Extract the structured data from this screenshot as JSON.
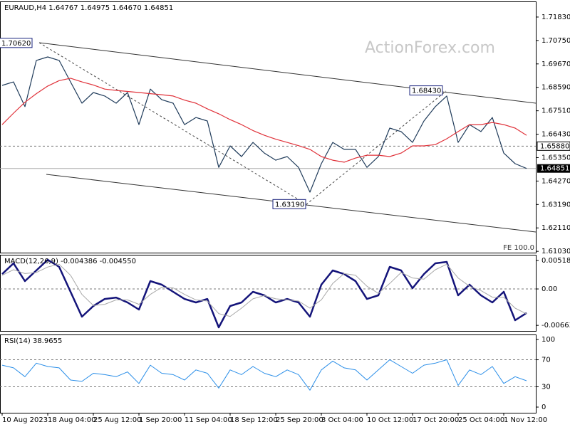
{
  "chart_data": [
    {
      "type": "line",
      "title": "EURAUD,H4  1.64767 1.64975 1.64670 1.64851",
      "watermark": "ActionForex.com",
      "note": "FE 100.0",
      "categories": [
        "10 Aug 2023",
        null,
        null,
        null,
        "18 Aug 04:00",
        null,
        null,
        null,
        "25 Aug 12:00",
        null,
        null,
        null,
        "1 Sep 20:00",
        null,
        null,
        null,
        "11 Sep 04:00",
        null,
        null,
        null,
        "18 Sep 12:00",
        null,
        null,
        null,
        "25 Sep 20:00",
        null,
        null,
        null,
        "3 Oct 04:00",
        null,
        null,
        null,
        "10 Oct 12:00",
        null,
        null,
        null,
        "17 Oct 20:00",
        null,
        null,
        null,
        "25 Oct 04:00",
        null,
        null,
        null,
        "1 Nov 12:00",
        null,
        null
      ],
      "series": [
        {
          "color": "#1f3b5a",
          "values": [
            1.6868,
            1.6884,
            1.677,
            1.6983,
            1.6999,
            1.6983,
            1.6884,
            1.6786,
            1.6835,
            1.6819,
            1.6786,
            1.6835,
            1.6687,
            1.6851,
            1.6802,
            1.6786,
            1.6687,
            1.672,
            1.6704,
            1.649,
            1.6589,
            1.654,
            1.6605,
            1.6556,
            1.6523,
            1.654,
            1.649,
            1.6376,
            1.6507,
            1.6605,
            1.6573,
            1.6573,
            1.649,
            1.654,
            1.6671,
            1.6655,
            1.6605,
            1.6704,
            1.677,
            1.6819,
            1.6605,
            1.6687,
            1.6655,
            1.672,
            1.6556,
            1.6507,
            1.64851
          ]
        },
        {
          "color": "#e0323a",
          "values": [
            1.6687,
            1.674,
            1.679,
            1.683,
            1.6865,
            1.689,
            1.6901,
            1.6884,
            1.687,
            1.6851,
            1.6845,
            1.684,
            1.6835,
            1.683,
            1.6825,
            1.6819,
            1.68,
            1.6786,
            1.676,
            1.6737,
            1.671,
            1.6687,
            1.666,
            1.6638,
            1.662,
            1.6605,
            1.659,
            1.6573,
            1.654,
            1.6523,
            1.6514,
            1.6533,
            1.6546,
            1.6546,
            1.654,
            1.6556,
            1.6589,
            1.6589,
            1.6595,
            1.6622,
            1.6655,
            1.6687,
            1.6687,
            1.6697,
            1.6687,
            1.6671,
            1.6638
          ]
        }
      ],
      "ylim": [
        1.6097,
        1.7255
      ],
      "yticks": [
        {
          "value": 1.7183,
          "label": "1.71830"
        },
        {
          "value": 1.7075,
          "label": "1.70750"
        },
        {
          "value": 1.6967,
          "label": "1.69670"
        },
        {
          "value": 1.6859,
          "label": "1.68590"
        },
        {
          "value": 1.6751,
          "label": "1.67510"
        },
        {
          "value": 1.6643,
          "label": "1.66430"
        },
        {
          "value": 1.6535,
          "label": "1.65350"
        },
        {
          "value": 1.6427,
          "label": "1.64270"
        },
        {
          "value": 1.6319,
          "label": "1.63190"
        },
        {
          "value": 1.6211,
          "label": "1.62110"
        },
        {
          "value": 1.6103,
          "label": "1.61030"
        }
      ],
      "levels": [
        {
          "value": 1.6588,
          "label": "1.65880"
        }
      ],
      "last_price": 1.64851,
      "annotations": [
        {
          "x": 3,
          "value": 1.7062,
          "label": "1.70620"
        },
        {
          "x": 39,
          "value": 1.6843,
          "label": "1.68430"
        },
        {
          "x": 27,
          "value": 1.6319,
          "label": "1.63190"
        }
      ]
    },
    {
      "type": "line",
      "title": "MACD(12,26,9) -0.004386 -0.004550",
      "series": [
        {
          "color": "#14147a",
          "width": 2.5,
          "values": [
            0.00272,
            0.00467,
            0.00143,
            0.00337,
            0.00532,
            0.00402,
            -0.00052,
            -0.00506,
            -0.00311,
            -0.00182,
            -0.00156,
            -0.00246,
            -0.00376,
            0.00143,
            0.00078,
            -0.00052,
            -0.00182,
            -0.00246,
            -0.00182,
            -0.007,
            -0.00311,
            -0.00246,
            -0.00052,
            -0.00117,
            -0.00246,
            -0.00182,
            -0.00246,
            -0.00506,
            0.00078,
            0.00337,
            0.00272,
            0.00143,
            -0.00182,
            -0.00117,
            0.00402,
            0.00337,
            0.00013,
            0.00272,
            0.00467,
            0.00493,
            -0.00117,
            0.00078,
            -0.00117,
            -0.00246,
            -0.00052,
            -0.00571,
            -0.004386
          ]
        },
        {
          "color": "#a8a8a8",
          "width": 1,
          "values": [
            0.0025,
            0.0035,
            0.0028,
            0.003,
            0.004,
            0.0045,
            0.0025,
            -0.001,
            -0.003,
            -0.0028,
            -0.002,
            -0.002,
            -0.0028,
            -0.001,
            0.0003,
            0.0002,
            -0.001,
            -0.002,
            -0.0022,
            -0.0045,
            -0.005,
            -0.0035,
            -0.0018,
            -0.0012,
            -0.0018,
            -0.002,
            -0.0022,
            -0.0035,
            -0.002,
            0.001,
            0.0028,
            0.0025,
            0.0005,
            -0.0008,
            0.001,
            0.003,
            0.002,
            0.0018,
            0.0035,
            0.0045,
            0.002,
            0.0005,
            -0.0003,
            -0.0015,
            -0.0015,
            -0.0035,
            -0.00455
          ]
        }
      ],
      "ylim": [
        -0.00765,
        0.00623
      ],
      "yticks": [
        0.005188,
        {
          "value": 0,
          "label": "0.00"
        },
        -0.006635
      ],
      "levels": [
        0
      ]
    },
    {
      "type": "line",
      "title": "RSI(14) 38.9655",
      "series": [
        {
          "color": "#2a8ee8",
          "width": 1,
          "values": [
            62,
            58,
            45,
            65,
            60,
            58,
            40,
            38,
            50,
            48,
            45,
            52,
            35,
            62,
            50,
            48,
            40,
            55,
            50,
            28,
            55,
            48,
            60,
            50,
            45,
            55,
            48,
            25,
            55,
            68,
            58,
            55,
            40,
            55,
            70,
            60,
            50,
            62,
            65,
            70,
            32,
            55,
            48,
            60,
            35,
            45,
            38.9655
          ]
        }
      ],
      "ylim": [
        -8.4,
        107.4
      ],
      "yticks": [
        100,
        70,
        30,
        0
      ],
      "levels": [
        70,
        30
      ]
    }
  ]
}
